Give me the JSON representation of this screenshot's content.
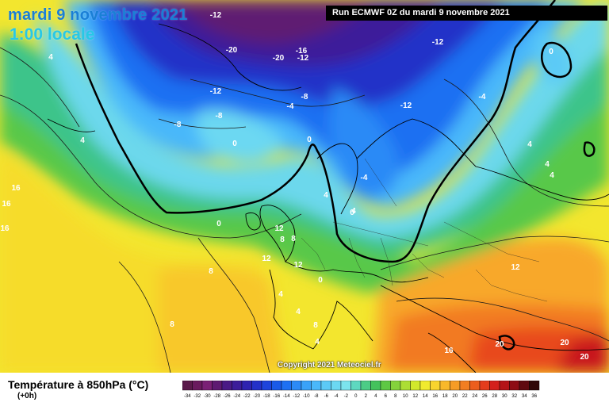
{
  "title": {
    "date": "mardi 9 novembre 2021",
    "time": "1:00 locale"
  },
  "run_info": "Run ECMWF 0Z du mardi 9 novembre 2021",
  "copyright": "Copyright 2021 Meteociel.fr",
  "field": {
    "label": "Température à 850hPa (°C)",
    "offset": "(+0h)"
  },
  "legend": {
    "ticks": [
      "-34",
      "-32",
      "-30",
      "-28",
      "-26",
      "-24",
      "-22",
      "-20",
      "-18",
      "-16",
      "-14",
      "-12",
      "-10",
      "-8",
      "-6",
      "-4",
      "-2",
      "0",
      "2",
      "4",
      "6",
      "8",
      "10",
      "12",
      "14",
      "16",
      "18",
      "20",
      "22",
      "24",
      "26",
      "28",
      "30",
      "32",
      "34",
      "36"
    ],
    "colors": [
      "#5a1a4a",
      "#6a1a5e",
      "#7a2075",
      "#5e1a72",
      "#4a1a86",
      "#3c1c9a",
      "#2f22b0",
      "#2430c8",
      "#1e44dc",
      "#1a5ae8",
      "#1e70f2",
      "#2c8af6",
      "#3aa2f8",
      "#4ab8fa",
      "#5ccaf6",
      "#6cd8f2",
      "#7ce4ee",
      "#5ed8c0",
      "#4ccc86",
      "#44c25c",
      "#5ec844",
      "#84d23c",
      "#acde34",
      "#d2e82c",
      "#f0ea2e",
      "#f8d42e",
      "#f8b82a",
      "#f69c26",
      "#f27e22",
      "#ec5e1e",
      "#e43c1c",
      "#d4201c",
      "#b41418",
      "#8e0c14",
      "#600a10",
      "#300808"
    ]
  },
  "isotherm_labels": [
    {
      "text": "-12"
    },
    {
      "text": "-20"
    },
    {
      "text": "-20"
    },
    {
      "text": "-16"
    },
    {
      "text": "-12"
    },
    {
      "text": "-12"
    },
    {
      "text": "-12"
    },
    {
      "text": "-8"
    },
    {
      "text": "-4"
    },
    {
      "text": "-8"
    },
    {
      "text": "-12"
    },
    {
      "text": "-8"
    },
    {
      "text": "-4"
    },
    {
      "text": "-4"
    },
    {
      "text": "0"
    },
    {
      "text": "4"
    },
    {
      "text": "4"
    },
    {
      "text": "4"
    },
    {
      "text": "4"
    },
    {
      "text": "0"
    },
    {
      "text": "0"
    },
    {
      "text": "0"
    },
    {
      "text": "0"
    },
    {
      "text": "4"
    },
    {
      "text": "4"
    },
    {
      "text": "8"
    },
    {
      "text": "8"
    },
    {
      "text": "8"
    },
    {
      "text": "12"
    },
    {
      "text": "12"
    },
    {
      "text": "16"
    },
    {
      "text": "16"
    },
    {
      "text": "16"
    },
    {
      "text": "20"
    },
    {
      "text": "20"
    },
    {
      "text": "20"
    },
    {
      "text": "4"
    },
    {
      "text": "4"
    },
    {
      "text": "4"
    },
    {
      "text": "0"
    },
    {
      "text": "-4"
    },
    {
      "text": "12"
    },
    {
      "text": "12"
    },
    {
      "text": "16"
    },
    {
      "text": "8"
    },
    {
      "text": "8"
    },
    {
      "text": "4"
    }
  ]
}
